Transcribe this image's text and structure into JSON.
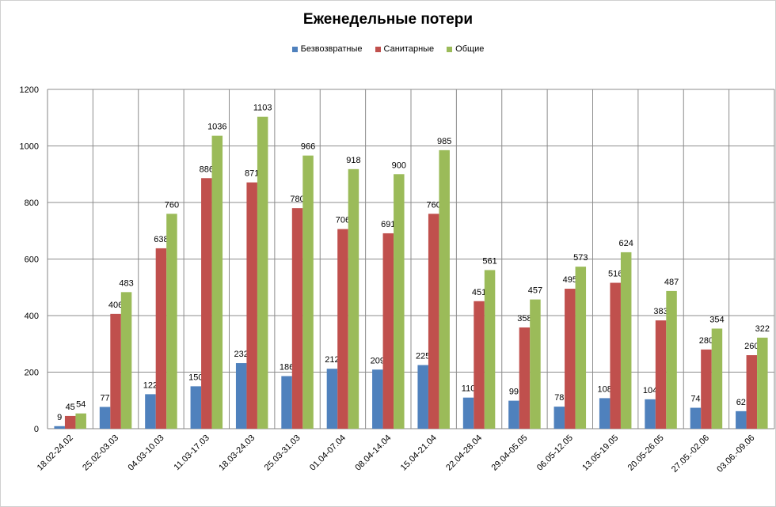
{
  "chart_data": {
    "type": "bar",
    "title": "Еженедельные потери",
    "xlabel": "",
    "ylabel": "",
    "ylim": [
      0,
      1200
    ],
    "yticks": [
      0,
      200,
      400,
      600,
      800,
      1000,
      1200
    ],
    "grid": true,
    "legend_position": "top",
    "categories": [
      "18.02-24.02",
      "25.02-03.03",
      "04.03-10.03",
      "11.03-17.03",
      "18.03-24.03",
      "25.03-31.03",
      "01.04-07.04",
      "08.04-14.04",
      "15.04-21.04",
      "22.04-28.04",
      "29.04-05.05",
      "06.05-12.05",
      "13.05-19.05",
      "20.05-26.05",
      "27.05.-02.06",
      "03.06.-09.06"
    ],
    "series": [
      {
        "name": "Безвозвратные",
        "color": "#4f81bd",
        "values": [
          9,
          77,
          122,
          150,
          232,
          186,
          212,
          209,
          225,
          110,
          99,
          78,
          108,
          104,
          74,
          62
        ]
      },
      {
        "name": "Санитарные",
        "color": "#c0504d",
        "values": [
          45,
          406,
          638,
          886,
          871,
          780,
          706,
          691,
          760,
          451,
          358,
          495,
          516,
          383,
          280,
          260
        ]
      },
      {
        "name": "Общие",
        "color": "#9bbb59",
        "values": [
          54,
          483,
          760,
          1036,
          1103,
          966,
          918,
          900,
          985,
          561,
          457,
          573,
          624,
          487,
          354,
          322
        ]
      }
    ]
  }
}
